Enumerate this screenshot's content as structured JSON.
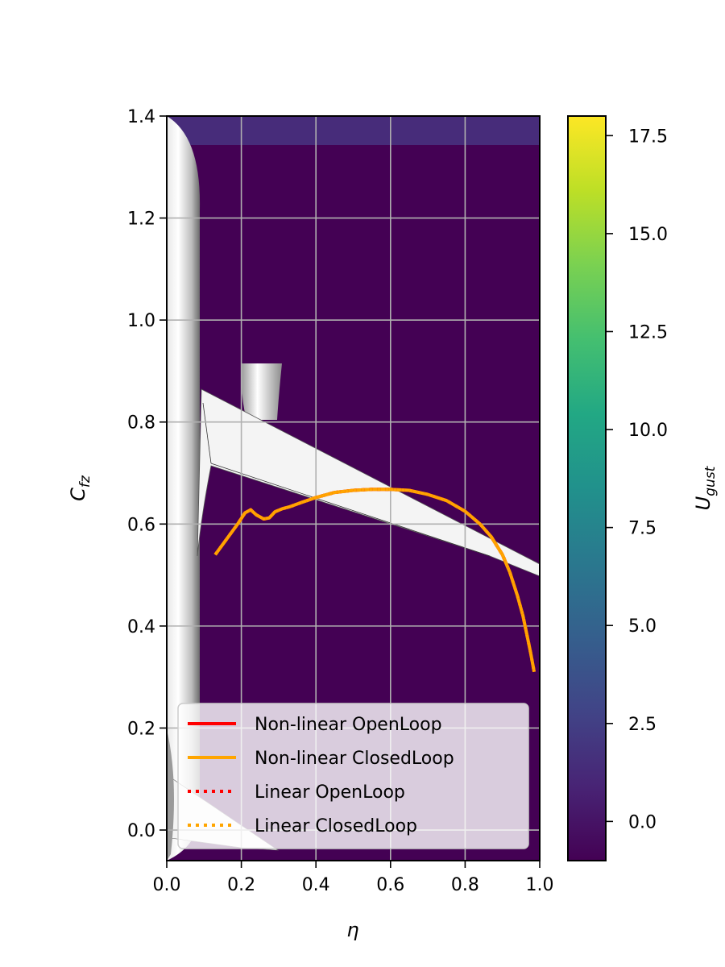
{
  "chart_data": {
    "type": "line",
    "title": "",
    "xlabel": "η",
    "ylabel_main": "C",
    "ylabel_sub": "fz",
    "xlim": [
      0.0,
      1.0
    ],
    "ylim": [
      -0.06,
      1.4
    ],
    "x_ticks": [
      "0.0",
      "0.2",
      "0.4",
      "0.6",
      "0.8",
      "1.0"
    ],
    "y_ticks": [
      "0.0",
      "0.2",
      "0.4",
      "0.6",
      "0.8",
      "1.0",
      "1.2",
      "1.4"
    ],
    "grid": true,
    "legend_position": "lower left",
    "background": {
      "description": "aircraft half-model rendering behind plot, colored by gust velocity",
      "band_top_value": 2.5,
      "base_value": -1.0
    },
    "colorbar": {
      "label_main": "U",
      "label_sub": "gust",
      "range": [
        -1.0,
        18.0
      ],
      "ticks": [
        "0.0",
        "2.5",
        "5.0",
        "7.5",
        "10.0",
        "12.5",
        "15.0",
        "17.5"
      ],
      "colormap": "viridis"
    },
    "series": [
      {
        "name": "Non-linear OpenLoop",
        "color": "#ff0000",
        "style": "solid",
        "x": [
          0.13,
          0.16,
          0.19,
          0.21,
          0.225,
          0.24,
          0.26,
          0.275,
          0.29,
          0.31,
          0.33,
          0.36,
          0.4,
          0.45,
          0.5,
          0.55,
          0.6,
          0.65,
          0.7,
          0.75,
          0.8,
          0.84,
          0.87,
          0.9,
          0.92,
          0.94,
          0.955,
          0.965,
          0.975,
          0.985
        ],
        "y": [
          0.54,
          0.57,
          0.6,
          0.622,
          0.628,
          0.618,
          0.61,
          0.612,
          0.624,
          0.63,
          0.634,
          0.642,
          0.652,
          0.662,
          0.666,
          0.668,
          0.668,
          0.666,
          0.658,
          0.646,
          0.625,
          0.6,
          0.575,
          0.54,
          0.505,
          0.46,
          0.42,
          0.385,
          0.35,
          0.31
        ]
      },
      {
        "name": "Non-linear ClosedLoop",
        "color": "#ffa500",
        "style": "solid",
        "x": [
          0.13,
          0.16,
          0.19,
          0.21,
          0.225,
          0.24,
          0.26,
          0.275,
          0.29,
          0.31,
          0.33,
          0.36,
          0.4,
          0.45,
          0.5,
          0.55,
          0.6,
          0.65,
          0.7,
          0.75,
          0.8,
          0.84,
          0.87,
          0.9,
          0.92,
          0.94,
          0.955,
          0.965,
          0.975,
          0.985
        ],
        "y": [
          0.54,
          0.57,
          0.6,
          0.622,
          0.628,
          0.618,
          0.61,
          0.612,
          0.624,
          0.63,
          0.634,
          0.642,
          0.652,
          0.662,
          0.666,
          0.668,
          0.668,
          0.666,
          0.658,
          0.646,
          0.625,
          0.6,
          0.575,
          0.54,
          0.505,
          0.46,
          0.42,
          0.385,
          0.35,
          0.31
        ]
      },
      {
        "name": "Linear OpenLoop",
        "color": "#ff0000",
        "style": "dotted",
        "x": [
          0.13,
          0.16,
          0.19,
          0.21,
          0.225,
          0.24,
          0.26,
          0.275,
          0.29,
          0.31,
          0.33,
          0.36,
          0.4,
          0.45,
          0.5,
          0.55,
          0.6,
          0.65,
          0.7,
          0.75,
          0.8,
          0.84,
          0.87,
          0.9,
          0.92,
          0.94,
          0.955,
          0.965,
          0.975,
          0.985
        ],
        "y": [
          0.54,
          0.57,
          0.6,
          0.622,
          0.628,
          0.618,
          0.61,
          0.612,
          0.624,
          0.63,
          0.634,
          0.642,
          0.652,
          0.662,
          0.666,
          0.668,
          0.668,
          0.666,
          0.658,
          0.646,
          0.625,
          0.6,
          0.575,
          0.54,
          0.505,
          0.46,
          0.42,
          0.385,
          0.35,
          0.31
        ]
      },
      {
        "name": "Linear ClosedLoop",
        "color": "#ffa500",
        "style": "dotted",
        "x": [
          0.13,
          0.16,
          0.19,
          0.21,
          0.225,
          0.24,
          0.26,
          0.275,
          0.29,
          0.31,
          0.33,
          0.36,
          0.4,
          0.45,
          0.5,
          0.55,
          0.6,
          0.65,
          0.7,
          0.75,
          0.8,
          0.84,
          0.87,
          0.9,
          0.92,
          0.94,
          0.955,
          0.965,
          0.975,
          0.985
        ],
        "y": [
          0.54,
          0.57,
          0.6,
          0.622,
          0.628,
          0.618,
          0.61,
          0.612,
          0.624,
          0.63,
          0.634,
          0.642,
          0.652,
          0.662,
          0.666,
          0.668,
          0.668,
          0.666,
          0.658,
          0.646,
          0.625,
          0.6,
          0.575,
          0.54,
          0.505,
          0.46,
          0.42,
          0.385,
          0.35,
          0.31
        ]
      }
    ]
  }
}
